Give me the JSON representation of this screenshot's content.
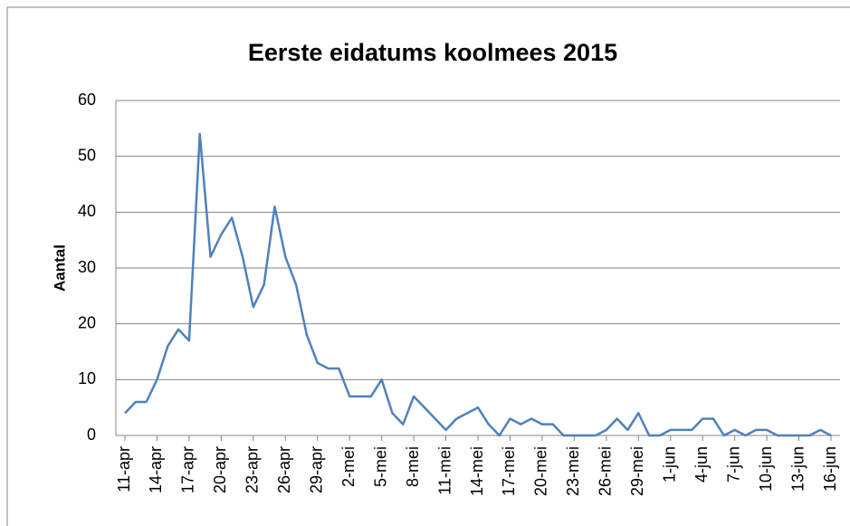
{
  "chart_data": {
    "type": "line",
    "title": "Eerste eidatums koolmees 2015",
    "y_label": "Aantal",
    "categories": [
      "11-apr",
      null,
      null,
      "14-apr",
      null,
      null,
      "17-apr",
      null,
      null,
      "20-apr",
      null,
      null,
      "23-apr",
      null,
      null,
      "26-apr",
      null,
      null,
      "29-apr",
      null,
      null,
      "2-mei",
      null,
      null,
      "5-mei",
      null,
      null,
      "8-mei",
      null,
      null,
      "11-mei",
      null,
      null,
      "14-mei",
      null,
      null,
      "17-mei",
      null,
      null,
      "20-mei",
      null,
      null,
      "23-mei",
      null,
      null,
      "26-mei",
      null,
      null,
      "29-mei",
      null,
      null,
      "1-jun",
      null,
      null,
      "4-jun",
      null,
      null,
      "7-jun",
      null,
      null,
      "10-jun",
      null,
      null,
      "13-jun",
      null,
      null,
      "16-jun"
    ],
    "values": [
      4,
      6,
      6,
      10,
      16,
      19,
      17,
      54,
      32,
      36,
      39,
      32,
      23,
      27,
      41,
      32,
      27,
      18,
      13,
      12,
      12,
      7,
      7,
      7,
      10,
      4,
      2,
      7,
      5,
      3,
      1,
      3,
      4,
      5,
      2,
      0,
      3,
      2,
      3,
      2,
      2,
      0,
      0,
      0,
      0,
      1,
      3,
      1,
      4,
      0,
      0,
      1,
      1,
      1,
      3,
      3,
      0,
      1,
      0,
      1,
      1,
      0,
      0,
      0,
      0,
      1,
      0
    ],
    "color": "#4f81bd",
    "ylim": [
      0,
      60
    ],
    "yticks": [
      0,
      10,
      20,
      30,
      40,
      50,
      60
    ],
    "grid": true
  }
}
